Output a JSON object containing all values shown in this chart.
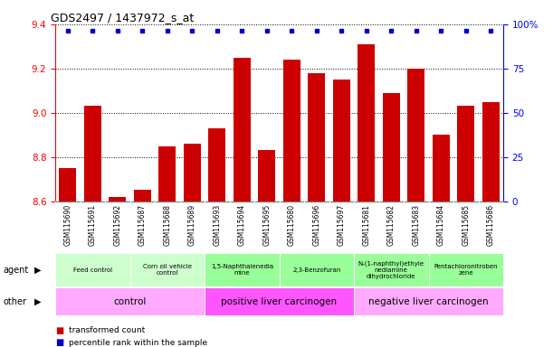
{
  "title": "GDS2497 / 1437972_s_at",
  "samples": [
    "GSM115690",
    "GSM115691",
    "GSM115692",
    "GSM115687",
    "GSM115688",
    "GSM115689",
    "GSM115693",
    "GSM115694",
    "GSM115695",
    "GSM115680",
    "GSM115696",
    "GSM115697",
    "GSM115681",
    "GSM115682",
    "GSM115683",
    "GSM115684",
    "GSM115685",
    "GSM115686"
  ],
  "bar_values": [
    8.75,
    9.03,
    8.62,
    8.65,
    8.85,
    8.86,
    8.93,
    9.25,
    8.83,
    9.24,
    9.18,
    9.15,
    9.31,
    9.09,
    9.2,
    8.9,
    9.03,
    9.05
  ],
  "ylim": [
    8.6,
    9.4
  ],
  "yticks_left": [
    8.6,
    8.8,
    9.0,
    9.2,
    9.4
  ],
  "right_ytick_pcts": [
    0,
    25,
    50,
    75,
    100
  ],
  "bar_color": "#cc0000",
  "dot_color": "#0000cc",
  "dot_pct": 100,
  "agent_groups": [
    {
      "label": "Feed control",
      "start": 0,
      "end": 3,
      "color": "#ccffcc"
    },
    {
      "label": "Corn oil vehicle\ncontrol",
      "start": 3,
      "end": 6,
      "color": "#ccffcc"
    },
    {
      "label": "1,5-Naphthalenedia\nmine",
      "start": 6,
      "end": 9,
      "color": "#99ff99"
    },
    {
      "label": "2,3-Benzofuran",
      "start": 9,
      "end": 12,
      "color": "#99ff99"
    },
    {
      "label": "N-(1-naphthyl)ethyle\nnediamine\ndihydrochloride",
      "start": 12,
      "end": 15,
      "color": "#99ff99"
    },
    {
      "label": "Pentachloronitroben\nzene",
      "start": 15,
      "end": 18,
      "color": "#99ff99"
    }
  ],
  "other_groups": [
    {
      "label": "control",
      "start": 0,
      "end": 6,
      "color": "#ffaaff"
    },
    {
      "label": "positive liver carcinogen",
      "start": 6,
      "end": 12,
      "color": "#ff55ff"
    },
    {
      "label": "negative liver carcinogen",
      "start": 12,
      "end": 18,
      "color": "#ffaaff"
    }
  ],
  "legend_items": [
    {
      "color": "#cc0000",
      "label": "transformed count"
    },
    {
      "color": "#0000cc",
      "label": "percentile rank within the sample"
    }
  ]
}
